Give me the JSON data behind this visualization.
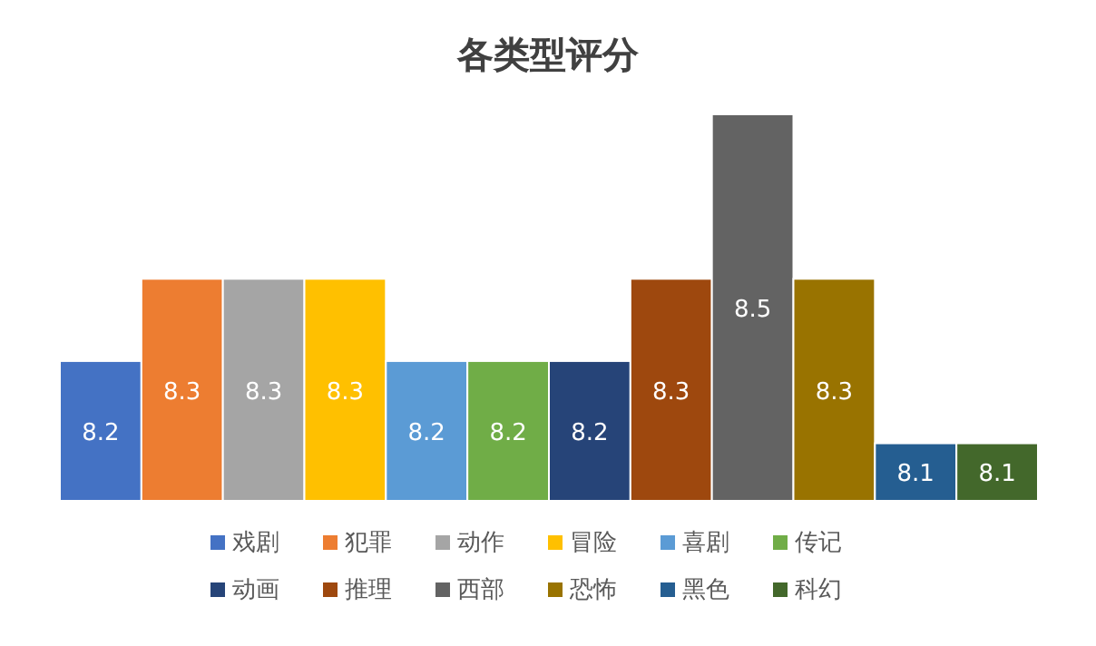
{
  "chart_data": {
    "type": "bar",
    "title": "各类型评分",
    "categories": [
      null
    ],
    "ylim": [
      8.03,
      8.5
    ],
    "data_labels": true,
    "legend": "bottom",
    "series": [
      {
        "name": "戏剧",
        "color": "#4472c4",
        "values": [
          8.2
        ]
      },
      {
        "name": "犯罪",
        "color": "#ed7d31",
        "values": [
          8.3
        ]
      },
      {
        "name": "动作",
        "color": "#a5a5a5",
        "values": [
          8.3
        ]
      },
      {
        "name": "冒险",
        "color": "#ffc000",
        "values": [
          8.3
        ]
      },
      {
        "name": "喜剧",
        "color": "#5b9bd5",
        "values": [
          8.2
        ]
      },
      {
        "name": "传记",
        "color": "#70ad47",
        "values": [
          8.2
        ]
      },
      {
        "name": "动画",
        "color": "#264478",
        "values": [
          8.2
        ]
      },
      {
        "name": "推理",
        "color": "#9e480e",
        "values": [
          8.3
        ]
      },
      {
        "name": "西部",
        "color": "#636363",
        "values": [
          8.5
        ]
      },
      {
        "name": "恐怖",
        "color": "#997300",
        "values": [
          8.3
        ]
      },
      {
        "name": "黑色",
        "color": "#255e91",
        "values": [
          8.1
        ]
      },
      {
        "name": "科幻",
        "color": "#43682b",
        "values": [
          8.1
        ]
      }
    ]
  }
}
